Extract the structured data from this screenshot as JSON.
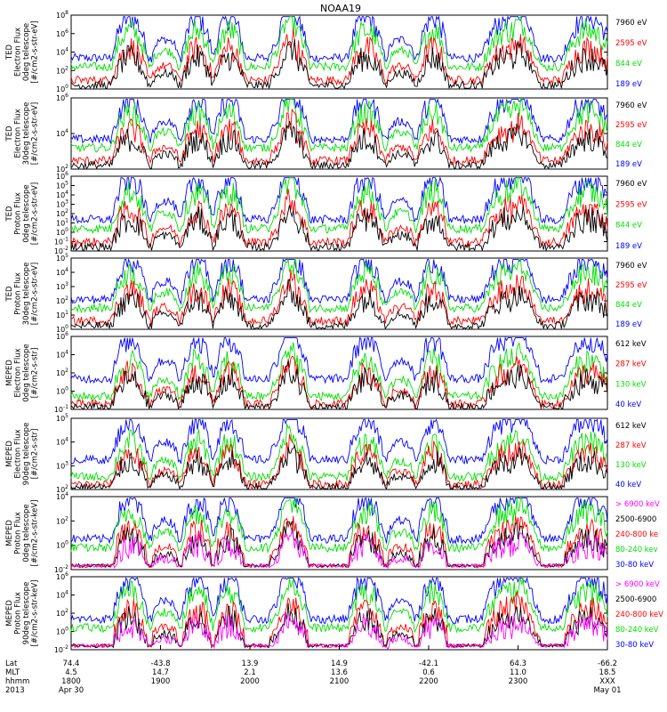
{
  "title": "NOAA19",
  "colors": {
    "black": "#000000",
    "red": "#ff0000",
    "green": "#00e000",
    "blue": "#0000ff",
    "magenta": "#ff00ff"
  },
  "chart_data": [
    {
      "type": "line",
      "ylabel_lines": [
        "TED",
        "Electron Flux",
        "0deg telescope",
        "[#/cm2-s-str-eV]"
      ],
      "ylog": true,
      "y_tick_labels": [
        "10^0",
        "10^2",
        "10^4",
        "10^6",
        "10^8"
      ],
      "legend": [
        {
          "name": "7960 eV",
          "color": "black"
        },
        {
          "name": "2595 eV",
          "color": "red"
        },
        {
          "name": "844 eV",
          "color": "green"
        },
        {
          "name": "189 eV",
          "color": "blue"
        }
      ]
    },
    {
      "type": "line",
      "ylabel_lines": [
        "TED",
        "Electron Flux",
        "30deg telescope",
        "[#/cm2-s-str-eV]"
      ],
      "ylog": true,
      "y_tick_labels": [
        "10^2",
        "10^4",
        "10^6"
      ],
      "legend": [
        {
          "name": "7960 eV",
          "color": "black"
        },
        {
          "name": "2595 eV",
          "color": "red"
        },
        {
          "name": "844 eV",
          "color": "green"
        },
        {
          "name": "189 eV",
          "color": "blue"
        }
      ]
    },
    {
      "type": "line",
      "ylabel_lines": [
        "TED",
        "Proton Flux",
        "0deg telescope",
        "[#/cm2-s-str-eV]"
      ],
      "ylog": true,
      "y_tick_labels": [
        "10^-2",
        "10^-1",
        "10^0",
        "10^1",
        "10^2",
        "10^3",
        "10^4",
        "10^5",
        "10^6"
      ],
      "legend": [
        {
          "name": "7960 eV",
          "color": "black"
        },
        {
          "name": "2595 eV",
          "color": "red"
        },
        {
          "name": "844 eV",
          "color": "green"
        },
        {
          "name": "189 eV",
          "color": "blue"
        }
      ]
    },
    {
      "type": "line",
      "ylabel_lines": [
        "TED",
        "Proton Flux",
        "30deg telescope",
        "[#/cm2-s-str-eV]"
      ],
      "ylog": true,
      "y_tick_labels": [
        "10^0",
        "10^1",
        "10^2",
        "10^3",
        "10^4",
        "10^5"
      ],
      "legend": [
        {
          "name": "7960 eV",
          "color": "black"
        },
        {
          "name": "2595 eV",
          "color": "red"
        },
        {
          "name": "844 eV",
          "color": "green"
        },
        {
          "name": "189 eV",
          "color": "blue"
        }
      ]
    },
    {
      "type": "line",
      "ylabel_lines": [
        "MEPED",
        "Electron Flux",
        "0deg telescope",
        "[#/cm2-s-str]"
      ],
      "ylog": true,
      "y_tick_labels": [
        "10^-1",
        "10^0",
        "10^2",
        "10^4",
        "10^6"
      ],
      "legend": [
        {
          "name": "612 keV",
          "color": "black"
        },
        {
          "name": "287 keV",
          "color": "red"
        },
        {
          "name": "130 keV",
          "color": "green"
        },
        {
          "name": "40 keV",
          "color": "blue"
        }
      ]
    },
    {
      "type": "line",
      "ylabel_lines": [
        "MEPED",
        "Electron Flux",
        "90deg telescope",
        "[#/cm2-s-str]"
      ],
      "ylog": true,
      "y_tick_labels": [
        "10^2",
        "10^3",
        "10^4",
        "10^5"
      ],
      "legend": [
        {
          "name": "612 keV",
          "color": "black"
        },
        {
          "name": "287 keV",
          "color": "red"
        },
        {
          "name": "130 keV",
          "color": "green"
        },
        {
          "name": "40 keV",
          "color": "blue"
        }
      ]
    },
    {
      "type": "line",
      "ylabel_lines": [
        "MEPED",
        "Proton Flux",
        "0deg telescope",
        "[#/cm2-s-str-keV]"
      ],
      "ylog": true,
      "y_tick_labels": [
        "10^-2",
        "10^0",
        "10^2",
        "10^4"
      ],
      "legend": [
        {
          "name": "> 6900 keV",
          "color": "magenta"
        },
        {
          "name": "2500-6900",
          "color": "black"
        },
        {
          "name": "240-800 ke",
          "color": "red"
        },
        {
          "name": "80-240 kev",
          "color": "green"
        },
        {
          "name": "30-80 keV",
          "color": "blue"
        }
      ]
    },
    {
      "type": "line",
      "ylabel_lines": [
        "MEPED",
        "Proton Flux",
        "90deg telescope",
        "[#/cm2-s-str-keV]"
      ],
      "ylog": true,
      "y_tick_labels": [
        "10^-2",
        "10^0",
        "10^2",
        "10^4",
        "10^6"
      ],
      "legend": [
        {
          "name": "> 6900 keV",
          "color": "magenta"
        },
        {
          "name": "2500-6900",
          "color": "black"
        },
        {
          "name": "240-800 keV",
          "color": "red"
        },
        {
          "name": "80-240 keV",
          "color": "green"
        },
        {
          "name": "30-80 keV",
          "color": "blue"
        }
      ]
    }
  ],
  "time_axis": {
    "row_labels": [
      "Lat",
      "MLT",
      "hhmm",
      "2013"
    ],
    "columns": [
      {
        "lat": "74.4",
        "mlt": "4.5",
        "hhmm": "1800",
        "date": "Apr 30"
      },
      {
        "lat": "-43.8",
        "mlt": "14.7",
        "hhmm": "1900",
        "date": ""
      },
      {
        "lat": "13.9",
        "mlt": "2.1",
        "hhmm": "2000",
        "date": ""
      },
      {
        "lat": "14.9",
        "mlt": "13.6",
        "hhmm": "2100",
        "date": ""
      },
      {
        "lat": "-42.1",
        "mlt": "0.6",
        "hhmm": "2200",
        "date": ""
      },
      {
        "lat": "64.3",
        "mlt": "11.0",
        "hhmm": "2300",
        "date": ""
      },
      {
        "lat": "-66.2",
        "mlt": "18.5",
        "hhmm": "XXX",
        "date": "May 01"
      }
    ]
  }
}
